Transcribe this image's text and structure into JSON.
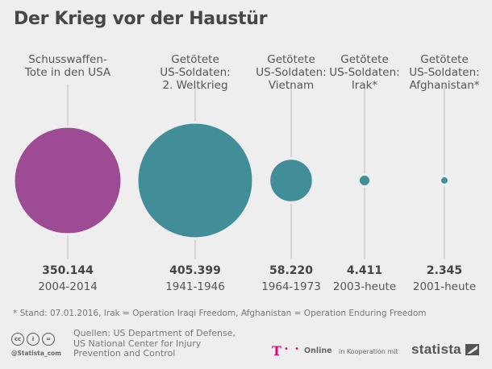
{
  "title": "Der Krieg vor der Haustür",
  "chart_data": {
    "type": "bubble",
    "title": "Der Krieg vor der Haustür",
    "categories": [
      {
        "label": [
          "Schusswaffen-",
          "Tote in den USA"
        ],
        "value": 350144,
        "value_label": "350.144",
        "period": "2004-2014",
        "color": "#9c4b94"
      },
      {
        "label": [
          "Getötete",
          "US-Soldaten:",
          "2. Weltkrieg"
        ],
        "value": 405399,
        "value_label": "405.399",
        "period": "1941-1946",
        "color": "#418e99"
      },
      {
        "label": [
          "Getötete",
          "US-Soldaten:",
          "Vietnam"
        ],
        "value": 58220,
        "value_label": "58.220",
        "period": "1964-1973",
        "color": "#418e99"
      },
      {
        "label": [
          "Getötete",
          "US-Soldaten:",
          "Irak*"
        ],
        "value": 4411,
        "value_label": "4.411",
        "period": "2003-heute",
        "color": "#418e99"
      },
      {
        "label": [
          "Getötete",
          "US-Soldaten:",
          "Afghanistan*"
        ],
        "value": 2345,
        "value_label": "2.345",
        "period": "2001-heute",
        "color": "#418e99"
      }
    ],
    "size_encoding": "area proportional to value"
  },
  "footnote": "* Stand: 07.01.2016, Irak =  Operation Iraqi Freedom, Afghanistan =  Operation Enduring Freedom",
  "footer": {
    "cc_icons": [
      "cc",
      "i",
      "="
    ],
    "handle": "@Statista_com",
    "sources": [
      "Quellen: US Department of Defense,",
      "US National Center for Injury",
      "Prevention and Control"
    ],
    "t_logo": "T",
    "t_dots": "• •",
    "online": "Online",
    "kooperation": "in Kooperation mit",
    "statista": "statista"
  }
}
